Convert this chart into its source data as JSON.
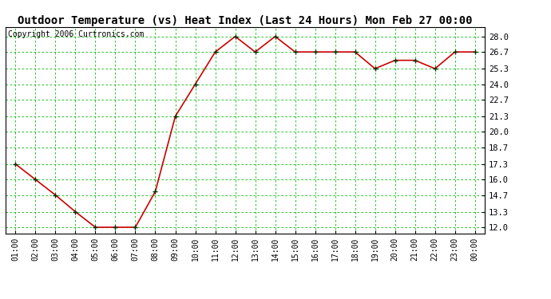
{
  "title": "Outdoor Temperature (vs) Heat Index (Last 24 Hours) Mon Feb 27 00:00",
  "copyright": "Copyright 2006 Curtronics.com",
  "x_labels": [
    "01:00",
    "02:00",
    "03:00",
    "04:00",
    "05:00",
    "06:00",
    "07:00",
    "08:00",
    "09:00",
    "10:00",
    "11:00",
    "12:00",
    "13:00",
    "14:00",
    "15:00",
    "16:00",
    "17:00",
    "18:00",
    "19:00",
    "20:00",
    "21:00",
    "22:00",
    "23:00",
    "00:00"
  ],
  "y_values": [
    17.3,
    16.0,
    14.7,
    13.3,
    12.0,
    12.0,
    12.0,
    15.0,
    21.3,
    24.0,
    26.7,
    28.0,
    26.7,
    28.0,
    26.7,
    26.7,
    26.7,
    26.7,
    25.3,
    26.0,
    26.0,
    25.3,
    26.7,
    26.7
  ],
  "y_ticks": [
    12.0,
    13.3,
    14.7,
    16.0,
    17.3,
    18.7,
    20.0,
    21.3,
    22.7,
    24.0,
    25.3,
    26.7,
    28.0
  ],
  "y_tick_labels": [
    "12.0",
    "13.3",
    "14.7",
    "16.0",
    "17.3",
    "18.7",
    "20.0",
    "21.3",
    "22.7",
    "24.0",
    "25.3",
    "26.7",
    "28.0"
  ],
  "ylim": [
    11.5,
    28.8
  ],
  "line_color": "#cc0000",
  "marker_color": "#003300",
  "bg_color": "#ffffff",
  "grid_color": "#00bb00",
  "title_fontsize": 10,
  "copyright_fontsize": 7
}
